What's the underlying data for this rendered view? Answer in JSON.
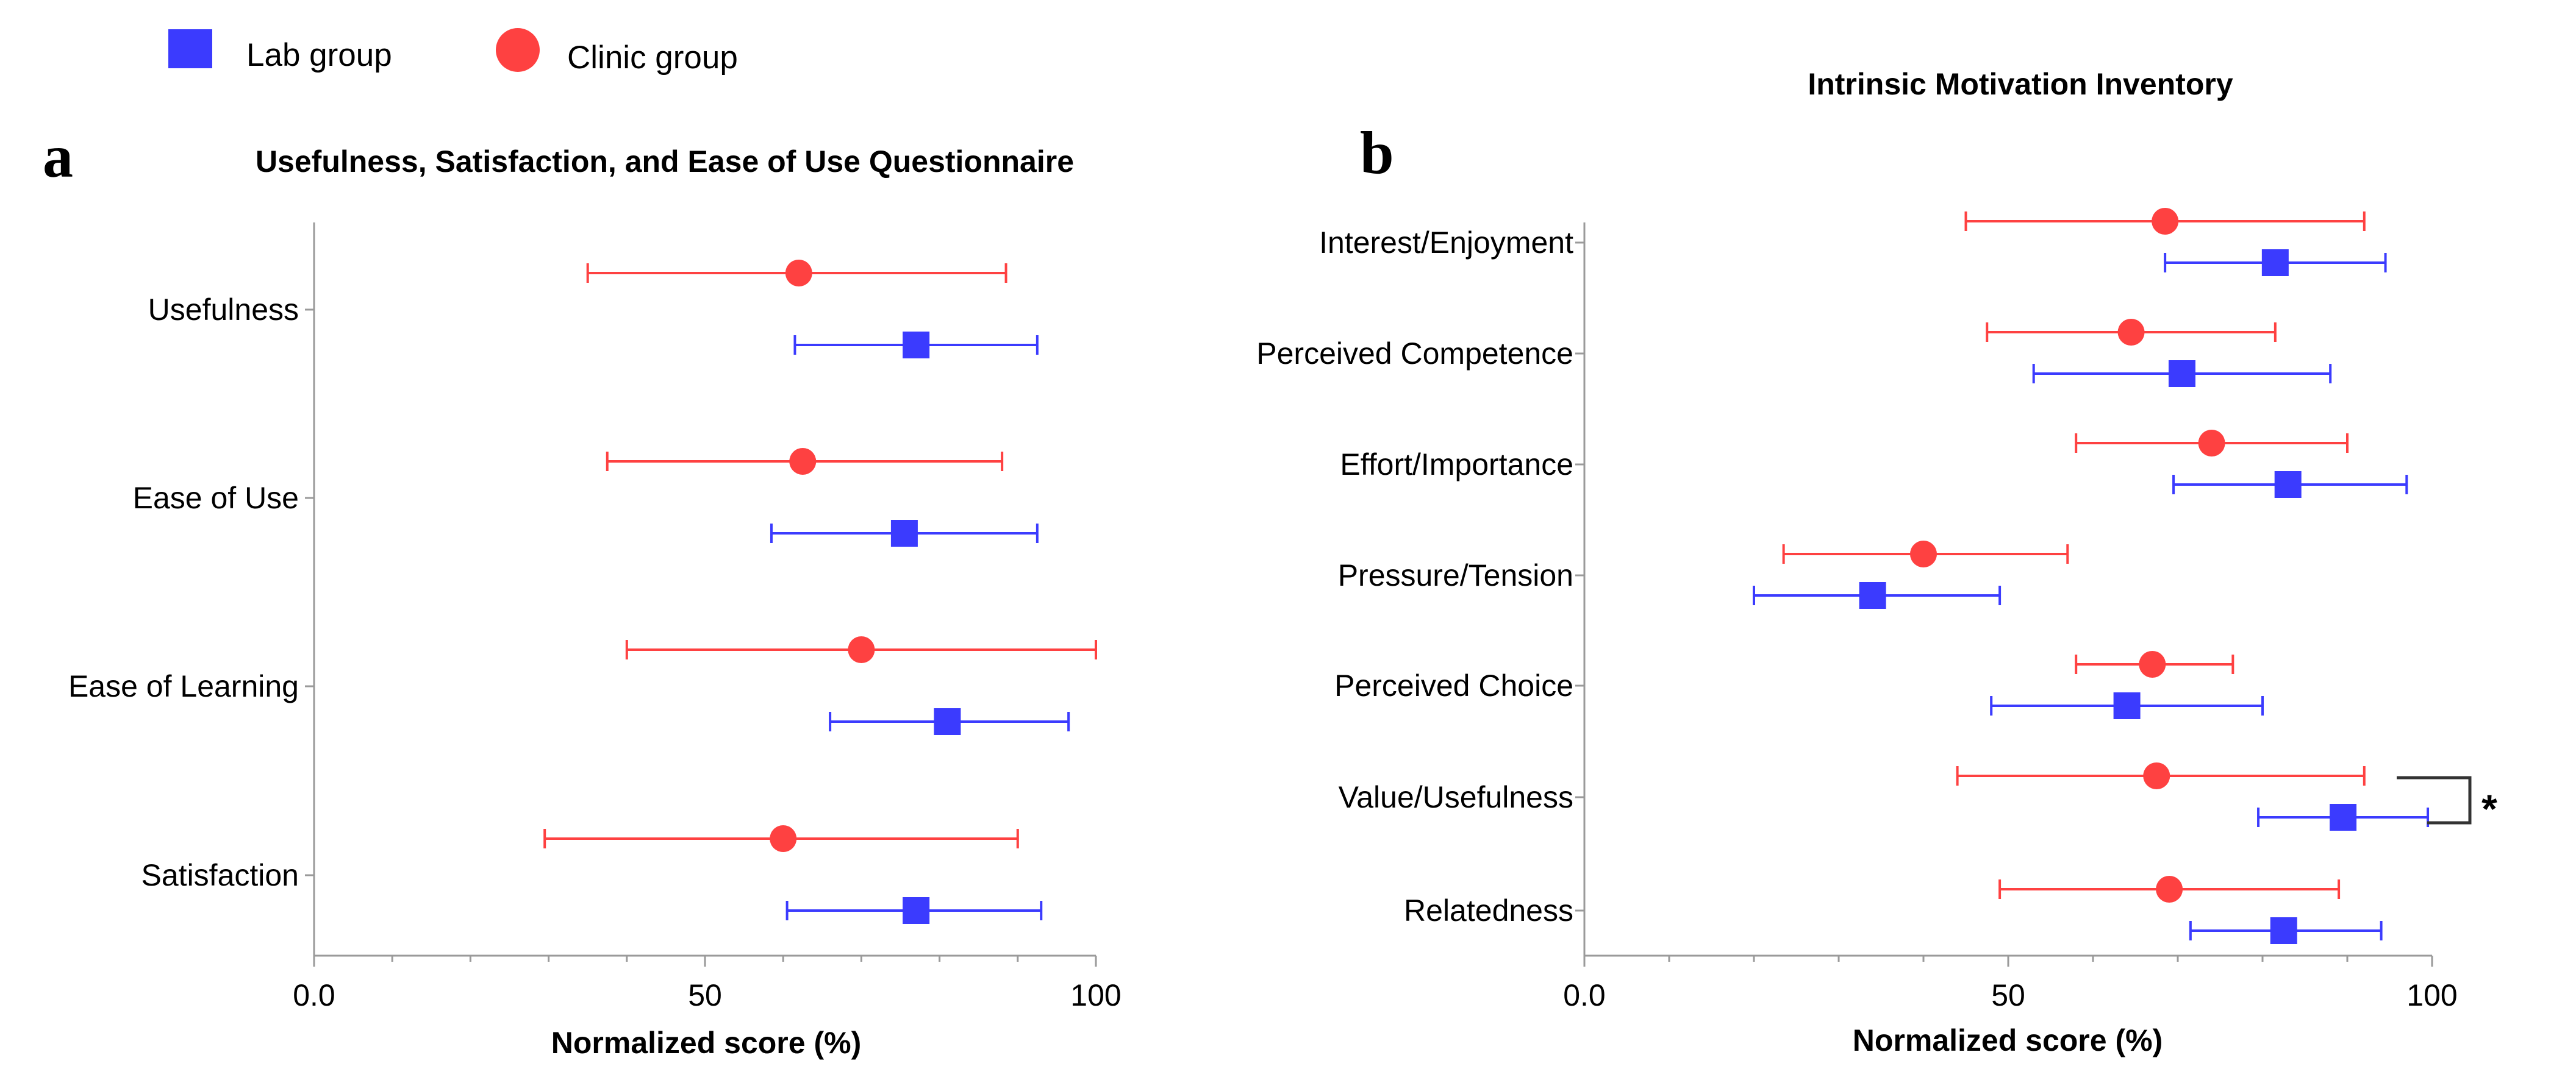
{
  "chart_data": [
    {
      "type": "scatter",
      "subtype": "dot-plot-with-error-bars",
      "panel_label": "a",
      "title": "Usefulness, Satisfaction, and Ease of Use Questionnaire",
      "xlabel": "Normalized score (%)",
      "ylabel": "",
      "xlim": [
        0,
        100
      ],
      "x_ticks": [
        "0.0",
        "50",
        "100"
      ],
      "categories": [
        "Usefulness",
        "Ease of Use",
        "Ease of Learning",
        "Satisfaction"
      ],
      "series": [
        {
          "name": "Clinic group",
          "marker": "circle",
          "color": "#fe4141",
          "values": [
            62,
            62.5,
            70,
            60
          ],
          "lower": [
            35,
            37.5,
            40,
            29.5
          ],
          "upper": [
            88.5,
            88,
            100,
            90
          ]
        },
        {
          "name": "Lab group",
          "marker": "square",
          "color": "#3b3bfe",
          "values": [
            77,
            75.5,
            81,
            77
          ],
          "lower": [
            61.5,
            58.5,
            66,
            60.5
          ],
          "upper": [
            92.5,
            92.5,
            96.5,
            93
          ]
        }
      ]
    },
    {
      "type": "scatter",
      "subtype": "dot-plot-with-error-bars",
      "panel_label": "b",
      "title": "Intrinsic Motivation Inventory",
      "xlabel": "Normalized score (%)",
      "ylabel": "",
      "xlim": [
        0,
        100
      ],
      "x_ticks": [
        "0.0",
        "50",
        "100"
      ],
      "categories": [
        "Interest/Enjoyment",
        "Perceived Competence",
        "Effort/Importance",
        "Pressure/Tension",
        "Perceived Choice",
        "Value/Usefulness",
        "Relatedness"
      ],
      "series": [
        {
          "name": "Clinic group",
          "marker": "circle",
          "color": "#fe4141",
          "values": [
            68.5,
            64.5,
            74,
            40,
            67,
            67.5,
            69
          ],
          "lower": [
            45,
            47.5,
            58,
            23.5,
            58,
            44,
            49
          ],
          "upper": [
            92,
            81.5,
            90,
            57,
            76.5,
            92,
            89
          ]
        },
        {
          "name": "Lab group",
          "marker": "square",
          "color": "#3b3bfe",
          "values": [
            81.5,
            70.5,
            83,
            34,
            64,
            89.5,
            82.5
          ],
          "lower": [
            68.5,
            53,
            69.5,
            20,
            48,
            79.5,
            71.5
          ],
          "upper": [
            94.5,
            88,
            97,
            49,
            80,
            99.5,
            94
          ]
        }
      ],
      "annotations": [
        {
          "text": "*",
          "between": [
            "Clinic group",
            "Lab group"
          ],
          "category": "Value/Usefulness"
        }
      ]
    }
  ],
  "legend": {
    "entries": [
      {
        "label": "Lab group",
        "marker": "square",
        "color": "#3b3bfe"
      },
      {
        "label": "Clinic group",
        "marker": "circle",
        "color": "#fe4141"
      }
    ],
    "position": "top-left"
  }
}
